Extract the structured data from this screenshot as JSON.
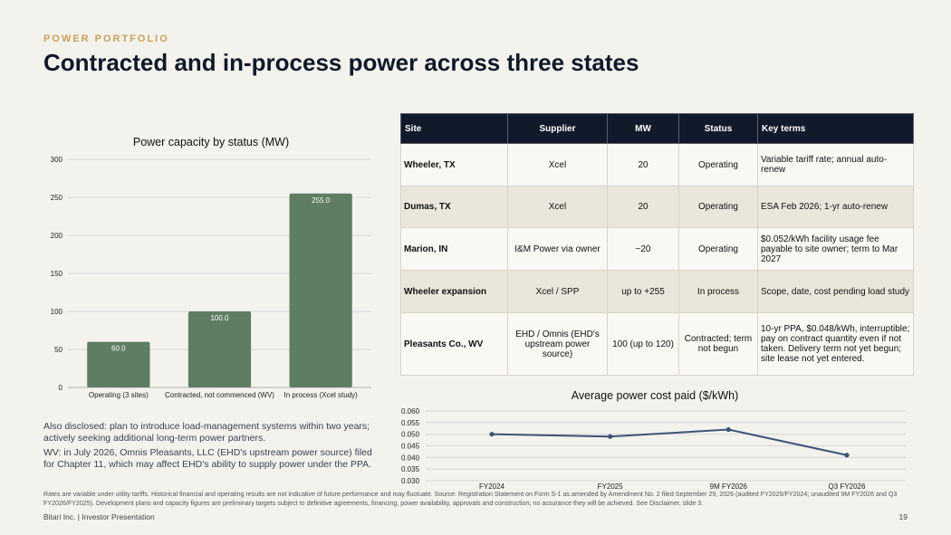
{
  "header": {
    "eyebrow": "POWER PORTFOLIO",
    "title": "Contracted and in-process power across three states"
  },
  "chart_data": [
    {
      "type": "bar",
      "title": "Power capacity by status (MW)",
      "categories": [
        "Operating (3 sites)",
        "Contracted, not commenced (WV)",
        "In process (Xcel study)"
      ],
      "values": [
        60.0,
        100.0,
        255.0
      ],
      "value_labels": [
        "60.0",
        "100.0",
        "255.0"
      ],
      "ylim": [
        0,
        300
      ],
      "yticks": [
        0,
        50,
        100,
        150,
        200,
        250,
        300
      ],
      "grid": true,
      "color": "#5e7d62"
    },
    {
      "type": "line",
      "title": "Average power cost paid ($/kWh)",
      "categories": [
        "FY2024",
        "FY2025",
        "9M FY2026",
        "Q3 FY2026"
      ],
      "values": [
        0.05,
        0.049,
        0.052,
        0.041
      ],
      "ylim": [
        0.03,
        0.06
      ],
      "yticks": [
        "0.030",
        "0.035",
        "0.040",
        "0.045",
        "0.050",
        "0.055",
        "0.060"
      ],
      "grid": true,
      "color": "#3d5478"
    }
  ],
  "table": {
    "headers": [
      "Site",
      "Supplier",
      "MW",
      "Status",
      "Key terms"
    ],
    "rows": [
      [
        "Wheeler, TX",
        "Xcel",
        "20",
        "Operating",
        "Variable tariff rate; annual auto-renew"
      ],
      [
        "Dumas, TX",
        "Xcel",
        "20",
        "Operating",
        "ESA Feb 2026; 1-yr auto-renew"
      ],
      [
        "Marion, IN",
        "I&M Power via owner",
        "~20",
        "Operating",
        "$0.052/kWh facility usage fee payable to site owner; term to Mar 2027"
      ],
      [
        "Wheeler expansion",
        "Xcel / SPP",
        "up to +255",
        "In process",
        "Scope, date, cost pending load study"
      ],
      [
        "Pleasants Co., WV",
        "EHD / Omnis (EHD's upstream power source)",
        "100 (up to 120)",
        "Contracted; term not begun",
        "10-yr PPA, $0.048/kWh, interruptible; pay on contract quantity even if not taken. Delivery term not yet begun; site lease not yet entered."
      ]
    ]
  },
  "disclosures": [
    "Also disclosed: plan to introduce load-management systems within two years; actively seeking additional long-term power partners.",
    "WV: in July 2026, Omnis Pleasants, LLC (EHD's upstream power source) filed for Chapter 11, which may affect EHD's ability to supply power under the PPA."
  ],
  "footnote": "Rates are variable under utility tariffs. Historical financial and operating results are not indicative of future performance and may fluctuate. Source: Registration Statement on Form S-1 as amended by Amendment No. 2 filed September 29, 2026 (audited FY2025/FY2024; unaudited 9M FY2026 and Q3 FY2026/FY2025). Development plans and capacity figures are preliminary targets subject to definitive agreements, financing, power availability, approvals and construction; no assurance they will be achieved. See Disclaimer, slide 3.",
  "footer": {
    "left": "Bitari Inc.  |  Investor Presentation",
    "page": "19"
  }
}
